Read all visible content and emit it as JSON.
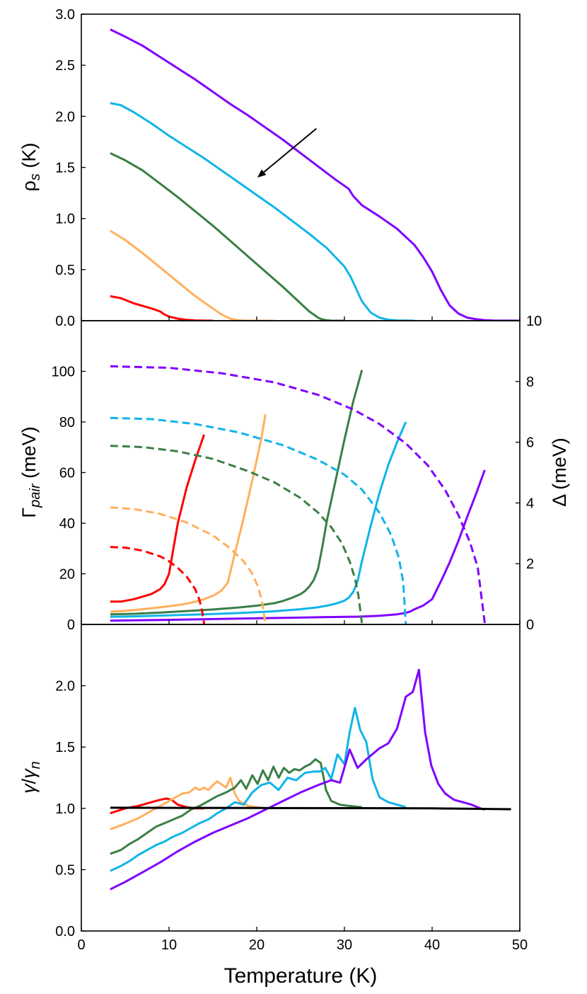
{
  "chart_data": [
    {
      "type": "line",
      "xlabel": "Temperature (K)",
      "ylabel": "ρs (K)",
      "xlim": [
        0,
        50
      ],
      "ylim": [
        0,
        3.0
      ],
      "x_ticks": [
        "0",
        "10",
        "20",
        "30",
        "40",
        "50"
      ],
      "y_ticks": [
        "0.0",
        "0.5",
        "1.0",
        "1.5",
        "2.0",
        "2.5",
        "3.0"
      ],
      "annotations": [
        "arrow pointing toward lower curves (decreasing Tc)"
      ],
      "series": [
        {
          "color": "#8000ff",
          "x": [
            3.3,
            5,
            7,
            9,
            11,
            13,
            15,
            17,
            19,
            21,
            23,
            25,
            27,
            29,
            30.5,
            31,
            32,
            34,
            36,
            38,
            39,
            40,
            41,
            42,
            43,
            44,
            45,
            46,
            47,
            50
          ],
          "y": [
            2.85,
            2.78,
            2.69,
            2.58,
            2.47,
            2.36,
            2.24,
            2.12,
            2.01,
            1.89,
            1.77,
            1.64,
            1.51,
            1.38,
            1.29,
            1.22,
            1.13,
            1.02,
            0.9,
            0.74,
            0.62,
            0.48,
            0.3,
            0.15,
            0.07,
            0.03,
            0.015,
            0.005,
            0.002,
            0.0
          ]
        },
        {
          "color": "#10b4e8",
          "x": [
            3.3,
            4.5,
            6,
            8,
            10,
            12,
            14,
            16,
            18,
            20,
            22,
            24,
            26,
            28,
            29,
            30,
            30.7,
            31.3,
            32,
            33,
            34,
            35,
            36,
            38
          ],
          "y": [
            2.13,
            2.11,
            2.04,
            1.93,
            1.81,
            1.7,
            1.59,
            1.47,
            1.35,
            1.23,
            1.11,
            0.98,
            0.85,
            0.71,
            0.62,
            0.53,
            0.43,
            0.32,
            0.19,
            0.08,
            0.03,
            0.01,
            0.003,
            0.0
          ]
        },
        {
          "color": "#3a7f46",
          "x": [
            3.3,
            5,
            7,
            9,
            11,
            13,
            15,
            17,
            19,
            21,
            23,
            25,
            26,
            27,
            27.5,
            28,
            28.5,
            30
          ],
          "y": [
            1.64,
            1.57,
            1.47,
            1.34,
            1.21,
            1.07,
            0.93,
            0.78,
            0.63,
            0.48,
            0.33,
            0.17,
            0.09,
            0.03,
            0.012,
            0.004,
            0.001,
            0.0
          ]
        },
        {
          "color": "#ffb05c",
          "x": [
            3.3,
            5,
            7,
            9,
            11,
            13,
            15,
            16,
            17,
            17.5,
            18,
            18.5,
            19,
            20,
            22
          ],
          "y": [
            0.88,
            0.79,
            0.66,
            0.52,
            0.38,
            0.24,
            0.12,
            0.06,
            0.02,
            0.01,
            0.004,
            0.002,
            0.001,
            0.0,
            0.0
          ]
        },
        {
          "color": "#ff0000",
          "x": [
            3.3,
            4.5,
            6,
            8,
            9,
            9.5,
            10,
            11,
            12,
            13,
            14,
            15
          ],
          "y": [
            0.24,
            0.22,
            0.17,
            0.12,
            0.09,
            0.06,
            0.04,
            0.02,
            0.008,
            0.003,
            0.001,
            0.0
          ]
        }
      ],
      "arrow": {
        "from": [
          26.8,
          1.88
        ],
        "to": [
          20.2,
          1.41
        ]
      }
    },
    {
      "type": "line",
      "xlabel": "Temperature (K)",
      "ylabel": "Γpair (meV)",
      "y2label": "Δ (meV)",
      "xlim": [
        0,
        50
      ],
      "ylim": [
        0,
        120
      ],
      "y2lim": [
        0,
        10
      ],
      "y_ticks": [
        "0",
        "20",
        "40",
        "60",
        "80",
        "100"
      ],
      "y2_ticks": [
        "0",
        "2",
        "4",
        "6",
        "8",
        "10"
      ],
      "note": "Solid lines: Γpair (left axis). Dashed lines: Δ (right axis).",
      "series": [
        {
          "color": "#ff0000",
          "style": "solid",
          "axis": "left",
          "x": [
            3.3,
            4.5,
            6,
            7,
            8,
            9,
            9.5,
            10,
            10.5,
            11,
            12,
            13,
            14
          ],
          "y": [
            9,
            9,
            10,
            11,
            12,
            14,
            16,
            20,
            30,
            40,
            54,
            65,
            75
          ]
        },
        {
          "color": "#ffb05c",
          "style": "solid",
          "axis": "left",
          "x": [
            3.3,
            5,
            7,
            9,
            11,
            12,
            13,
            14,
            15,
            16,
            16.7,
            17.5,
            18.5,
            19.5,
            20.5,
            21
          ],
          "y": [
            5,
            5.4,
            6,
            6.8,
            7.6,
            8.2,
            9,
            10,
            11.3,
            13.4,
            16.5,
            28,
            42,
            57,
            73,
            83
          ]
        },
        {
          "color": "#3a7f46",
          "style": "solid",
          "axis": "left",
          "x": [
            3.3,
            6,
            9,
            12,
            15,
            18,
            20,
            22,
            23,
            24,
            25,
            25.5,
            26,
            26.5,
            27,
            27.5,
            28,
            29,
            30,
            31,
            32
          ],
          "y": [
            4,
            4.2,
            4.7,
            5.3,
            5.9,
            6.7,
            7.4,
            8.4,
            9.3,
            10.5,
            12,
            13.2,
            15,
            17.5,
            22,
            31,
            41,
            57,
            73,
            88,
            100.5
          ]
        },
        {
          "color": "#10b4e8",
          "style": "solid",
          "axis": "left",
          "x": [
            3.3,
            6,
            10,
            14,
            18,
            22,
            25,
            27,
            28,
            29,
            30,
            30.5,
            31,
            31.5,
            32,
            33,
            34,
            35,
            36,
            37
          ],
          "y": [
            3,
            3.2,
            3.6,
            4,
            4.5,
            5.2,
            6,
            6.8,
            7.4,
            8.2,
            9.4,
            10.6,
            12.8,
            17,
            25,
            39,
            52,
            63,
            72,
            80
          ]
        },
        {
          "color": "#8000ff",
          "style": "solid",
          "axis": "left",
          "x": [
            3.3,
            8,
            13,
            18,
            23,
            28,
            32,
            34,
            36,
            37,
            37.5,
            38,
            39,
            40,
            41,
            42,
            43,
            44,
            45,
            46
          ],
          "y": [
            1.5,
            1.7,
            2,
            2.3,
            2.6,
            2.9,
            3.1,
            3.4,
            4,
            4.6,
            5.1,
            6,
            7.5,
            10,
            17,
            24.5,
            33,
            42.5,
            51.5,
            61
          ]
        },
        {
          "color": "#ff0000",
          "style": "dashed",
          "axis": "right",
          "x": [
            3.3,
            5,
            7,
            9,
            10,
            11,
            12,
            13,
            13.4,
            13.7,
            14
          ],
          "y": [
            2.55,
            2.53,
            2.43,
            2.24,
            2.08,
            1.86,
            1.58,
            1.15,
            0.86,
            0.56,
            0.02
          ]
        },
        {
          "color": "#ffb05c",
          "style": "dashed",
          "axis": "right",
          "x": [
            3.3,
            6,
            9,
            12,
            15,
            17,
            18.5,
            19.5,
            20.2,
            20.6,
            21
          ],
          "y": [
            3.85,
            3.8,
            3.64,
            3.36,
            2.93,
            2.5,
            2.08,
            1.67,
            1.2,
            0.75,
            0.02
          ]
        },
        {
          "color": "#3a7f46",
          "style": "dashed",
          "axis": "right",
          "x": [
            3.3,
            7,
            11,
            15,
            19,
            22,
            25,
            27,
            28.5,
            29.7,
            30.6,
            31.2,
            31.6,
            32
          ],
          "y": [
            5.88,
            5.84,
            5.7,
            5.45,
            5.05,
            4.68,
            4.16,
            3.68,
            3.2,
            2.68,
            2.08,
            1.52,
            0.95,
            0.02
          ]
        },
        {
          "color": "#10b4e8",
          "style": "dashed",
          "axis": "right",
          "x": [
            3.3,
            8,
            13,
            18,
            23,
            27,
            30,
            32,
            34,
            35.3,
            36.2,
            36.7,
            37
          ],
          "y": [
            6.8,
            6.76,
            6.6,
            6.32,
            5.9,
            5.42,
            4.93,
            4.44,
            3.68,
            2.96,
            2.2,
            1.4,
            0.02
          ]
        },
        {
          "color": "#8000ff",
          "style": "dashed",
          "axis": "right",
          "x": [
            3.3,
            10,
            16,
            22,
            27,
            31,
            34,
            37,
            39.5,
            41.5,
            43,
            44.3,
            45.2,
            46
          ],
          "y": [
            8.5,
            8.45,
            8.27,
            7.97,
            7.56,
            7.08,
            6.6,
            5.96,
            5.24,
            4.42,
            3.6,
            2.72,
            1.88,
            0.05
          ]
        }
      ]
    },
    {
      "type": "line",
      "xlabel": "Temperature (K)",
      "ylabel": "γ/γn",
      "xlim": [
        0,
        50
      ],
      "ylim": [
        0,
        2.5
      ],
      "y_ticks": [
        "0.0",
        "0.5",
        "1.0",
        "1.5",
        "2.0"
      ],
      "series": [
        {
          "color": "#ff0000",
          "x": [
            3.3,
            5,
            6.5,
            8,
            9,
            9.7,
            10.3,
            11,
            12,
            13,
            14
          ],
          "y": [
            0.96,
            1.0,
            1.02,
            1.05,
            1.07,
            1.08,
            1.07,
            1.03,
            1.01,
            1.0,
            1.0
          ]
        },
        {
          "color": "#ffb05c",
          "x": [
            3.3,
            4.5,
            5.5,
            6.5,
            7.5,
            8.5,
            9.5,
            10.5,
            11.5,
            12.3,
            13,
            13.5,
            14,
            14.5,
            15,
            15.5,
            16.5,
            17,
            17.5,
            18,
            19,
            20,
            21
          ],
          "y": [
            0.83,
            0.86,
            0.89,
            0.92,
            0.96,
            1.0,
            1.04,
            1.08,
            1.12,
            1.13,
            1.17,
            1.15,
            1.17,
            1.15,
            1.19,
            1.22,
            1.17,
            1.25,
            1.12,
            1.06,
            1.02,
            1.01,
            1.0
          ]
        },
        {
          "color": "#3a7f46",
          "x": [
            3.3,
            4.5,
            5.5,
            6.5,
            7.5,
            8.5,
            9.5,
            10.5,
            11.5,
            12.5,
            13.5,
            14.5,
            15.5,
            16.5,
            17.5,
            18.2,
            18.8,
            19.5,
            20.1,
            20.7,
            21.3,
            21.9,
            22.5,
            23.1,
            23.7,
            24.3,
            24.9,
            25.5,
            26.1,
            26.7,
            27.3,
            27.9,
            28.5,
            29.5,
            30.5,
            32
          ],
          "y": [
            0.63,
            0.66,
            0.71,
            0.75,
            0.8,
            0.85,
            0.88,
            0.91,
            0.94,
            0.99,
            1.02,
            1.06,
            1.1,
            1.13,
            1.17,
            1.23,
            1.16,
            1.27,
            1.2,
            1.31,
            1.23,
            1.34,
            1.25,
            1.33,
            1.29,
            1.32,
            1.31,
            1.34,
            1.36,
            1.4,
            1.37,
            1.15,
            1.06,
            1.03,
            1.02,
            1.01
          ]
        },
        {
          "color": "#10b4e8",
          "x": [
            3.3,
            4.5,
            5.5,
            6.5,
            7.5,
            8.5,
            9.5,
            10.5,
            11.5,
            12.5,
            13.5,
            14.5,
            15.5,
            16.5,
            17.5,
            18.5,
            19.5,
            20.5,
            21.5,
            22.5,
            23.5,
            24.5,
            25.5,
            26.5,
            27.2,
            27.8,
            28.5,
            29.2,
            30,
            30.6,
            31.2,
            31.8,
            32.5,
            33.2,
            34,
            35,
            36,
            37
          ],
          "y": [
            0.49,
            0.53,
            0.57,
            0.62,
            0.66,
            0.7,
            0.73,
            0.77,
            0.8,
            0.84,
            0.88,
            0.91,
            0.96,
            1.0,
            1.05,
            1.03,
            1.13,
            1.19,
            1.21,
            1.15,
            1.25,
            1.23,
            1.29,
            1.3,
            1.3,
            1.33,
            1.24,
            1.44,
            1.36,
            1.62,
            1.82,
            1.64,
            1.54,
            1.24,
            1.09,
            1.05,
            1.03,
            1.01
          ]
        },
        {
          "color": "#8000ff",
          "x": [
            3.3,
            5,
            7,
            9,
            11,
            13,
            15,
            17,
            19,
            21,
            23,
            25,
            27,
            28.5,
            29.5,
            30.6,
            31.5,
            32.5,
            34,
            35,
            36,
            37,
            37.8,
            38.5,
            39.2,
            39.9,
            40.7,
            41.5,
            42.5,
            43.5,
            44.5,
            45.5,
            46
          ],
          "y": [
            0.34,
            0.4,
            0.48,
            0.56,
            0.65,
            0.73,
            0.8,
            0.86,
            0.92,
            0.99,
            1.06,
            1.13,
            1.19,
            1.23,
            1.21,
            1.48,
            1.33,
            1.4,
            1.49,
            1.53,
            1.65,
            1.91,
            1.95,
            2.13,
            1.62,
            1.35,
            1.2,
            1.12,
            1.07,
            1.05,
            1.03,
            1.0,
            0.99
          ]
        },
        {
          "color": "#000000",
          "x": [
            3.3,
            20,
            30,
            40,
            49
          ],
          "y": [
            1.005,
            1.003,
            1.002,
            1.0,
            0.993
          ]
        }
      ]
    }
  ]
}
